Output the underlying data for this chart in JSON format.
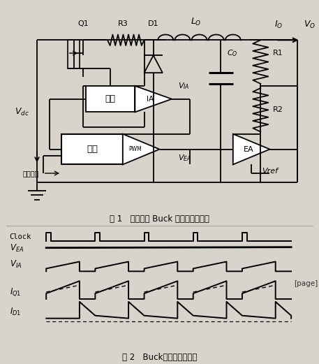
{
  "fig_width": 4.57,
  "fig_height": 5.21,
  "dpi": 100,
  "bg_color": "#d8d4cc",
  "fig1_caption": "图 1   电流模式 Buck 开关电源原理图",
  "fig2_caption": "图 2   Buck变换器的波形图",
  "page_label": "[page]"
}
